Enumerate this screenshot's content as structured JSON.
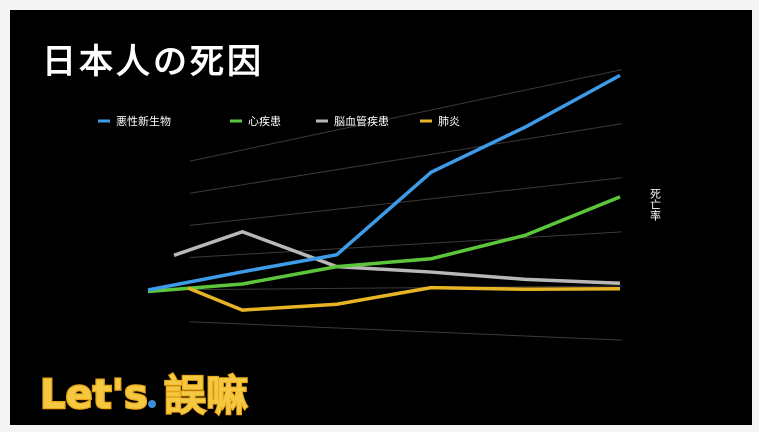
{
  "slide": {
    "title": "日本人の死因"
  },
  "logo": {
    "text": "Let's 誤嘛",
    "latin": "Let's",
    "cjk": "誤嘛",
    "colors": {
      "fill": "#f5c842",
      "outline": "#e8a317",
      "accent": "#3a8fd4"
    }
  },
  "chart_data": {
    "type": "line",
    "ylabel": "死亡率",
    "grid": true,
    "legend_position": "top",
    "x": [
      1,
      2,
      3,
      4,
      5,
      6
    ],
    "ylim": [
      0,
      100
    ],
    "series": [
      {
        "name": "悪性新生物",
        "color": "#3d9be9",
        "values": [
          20,
          30,
          37,
          72,
          85,
          98
        ]
      },
      {
        "name": "心疾患",
        "color": "#5cc63b",
        "values": [
          19,
          23,
          31,
          33,
          41,
          53
        ]
      },
      {
        "name": "脳血管疾患",
        "color": "#b8b8b8",
        "values": [
          42,
          53,
          31,
          27,
          23,
          21
        ]
      },
      {
        "name": "肺炎",
        "color": "#e6b424",
        "values": [
          21,
          8,
          12,
          20,
          19,
          19
        ]
      }
    ]
  }
}
